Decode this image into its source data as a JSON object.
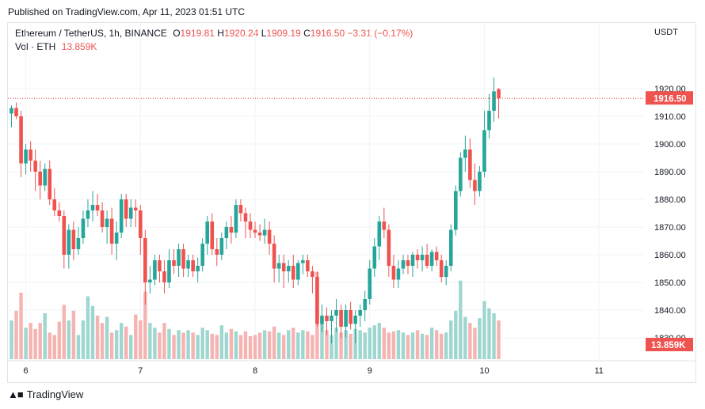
{
  "header": {
    "published": "Published on TradingView.com, Apr 11, 2023 01:51 UTC"
  },
  "legend": {
    "symbol": "Ethereum / TetherUS, 1h, BINANCE",
    "open_label": "O",
    "open": "1919.81",
    "high_label": "H",
    "high": "1920.24",
    "low_label": "L",
    "low": "1909.19",
    "close_label": "C",
    "close": "1916.50",
    "change": "−3.31 (−0.17%)",
    "vol_label": "Vol · ETH",
    "vol_value": "13.859K"
  },
  "price_axis": {
    "currency": "USDT"
  },
  "footer": {
    "brand": "TradingView",
    "logo_icon": "tradingview-logo-icon"
  },
  "colors": {
    "up": "#26a69a",
    "down": "#ef5350",
    "up_volume": "#9ed6d0",
    "down_volume": "#f5b3b1",
    "grid": "#f0f3fa",
    "axis_text": "#131722",
    "last_price_line": "#ef5350"
  },
  "chart_data": {
    "type": "candlestick",
    "instrument": "Ethereum / TetherUS",
    "interval": "1h",
    "exchange": "BINANCE",
    "ylim": [
      1822,
      1932
    ],
    "y_ticks": [
      1830,
      1840,
      1850,
      1860,
      1870,
      1880,
      1890,
      1900,
      1910,
      1920
    ],
    "y_tick_labels": [
      "1830.00",
      "1840.00",
      "1850.00",
      "1860.00",
      "1870.00",
      "1880.00",
      "1890.00",
      "1900.00",
      "1910.00",
      "1920.00"
    ],
    "x_ticks": [
      {
        "label": "6",
        "index": 3
      },
      {
        "label": "7",
        "index": 27
      },
      {
        "label": "8",
        "index": 51
      },
      {
        "label": "9",
        "index": 75
      },
      {
        "label": "10",
        "index": 99
      },
      {
        "label": "11",
        "index": 123
      }
    ],
    "last_price": "1916.50",
    "last_volume": "13.859K",
    "grid": true,
    "candles": [
      [
        1911,
        1914,
        1906,
        1913
      ],
      [
        1913,
        1915,
        1909,
        1910
      ],
      [
        1910,
        1912,
        1888,
        1893
      ],
      [
        1893,
        1900,
        1889,
        1898
      ],
      [
        1898,
        1901,
        1890,
        1894
      ],
      [
        1894,
        1898,
        1883,
        1890
      ],
      [
        1890,
        1894,
        1880,
        1885
      ],
      [
        1885,
        1893,
        1883,
        1891
      ],
      [
        1891,
        1894,
        1878,
        1880
      ],
      [
        1880,
        1884,
        1874,
        1876
      ],
      [
        1876,
        1879,
        1872,
        1874
      ],
      [
        1874,
        1876,
        1855,
        1860
      ],
      [
        1860,
        1871,
        1855,
        1869
      ],
      [
        1869,
        1872,
        1858,
        1862
      ],
      [
        1862,
        1870,
        1860,
        1866
      ],
      [
        1866,
        1876,
        1864,
        1873
      ],
      [
        1873,
        1880,
        1870,
        1876
      ],
      [
        1876,
        1883,
        1872,
        1878
      ],
      [
        1878,
        1882,
        1874,
        1876
      ],
      [
        1876,
        1879,
        1868,
        1870
      ],
      [
        1870,
        1876,
        1864,
        1873
      ],
      [
        1873,
        1877,
        1860,
        1864
      ],
      [
        1864,
        1872,
        1858,
        1868
      ],
      [
        1868,
        1882,
        1866,
        1880
      ],
      [
        1880,
        1882,
        1870,
        1873
      ],
      [
        1873,
        1880,
        1870,
        1877
      ],
      [
        1877,
        1880,
        1870,
        1876
      ],
      [
        1876,
        1878,
        1860,
        1866
      ],
      [
        1866,
        1869,
        1842,
        1850
      ],
      [
        1850,
        1856,
        1846,
        1851
      ],
      [
        1851,
        1860,
        1849,
        1858
      ],
      [
        1858,
        1860,
        1850,
        1854
      ],
      [
        1854,
        1858,
        1846,
        1850
      ],
      [
        1850,
        1862,
        1848,
        1858
      ],
      [
        1858,
        1862,
        1853,
        1856
      ],
      [
        1856,
        1864,
        1852,
        1862
      ],
      [
        1862,
        1864,
        1852,
        1855
      ],
      [
        1855,
        1860,
        1852,
        1858
      ],
      [
        1858,
        1860,
        1852,
        1854
      ],
      [
        1854,
        1859,
        1850,
        1856
      ],
      [
        1856,
        1866,
        1854,
        1864
      ],
      [
        1864,
        1874,
        1860,
        1872
      ],
      [
        1872,
        1875,
        1860,
        1862
      ],
      [
        1862,
        1866,
        1856,
        1860
      ],
      [
        1860,
        1868,
        1858,
        1866
      ],
      [
        1866,
        1872,
        1862,
        1870
      ],
      [
        1870,
        1874,
        1864,
        1868
      ],
      [
        1868,
        1880,
        1866,
        1878
      ],
      [
        1878,
        1880,
        1872,
        1875
      ],
      [
        1875,
        1877,
        1866,
        1872
      ],
      [
        1872,
        1875,
        1866,
        1869
      ],
      [
        1869,
        1872,
        1866,
        1868
      ],
      [
        1868,
        1871,
        1865,
        1867
      ],
      [
        1867,
        1873,
        1864,
        1869
      ],
      [
        1869,
        1872,
        1860,
        1864
      ],
      [
        1864,
        1867,
        1850,
        1855
      ],
      [
        1855,
        1860,
        1850,
        1857
      ],
      [
        1857,
        1860,
        1848,
        1854
      ],
      [
        1854,
        1858,
        1850,
        1856
      ],
      [
        1856,
        1860,
        1848,
        1851
      ],
      [
        1851,
        1858,
        1849,
        1857
      ],
      [
        1857,
        1860,
        1853,
        1858
      ],
      [
        1858,
        1860,
        1852,
        1854
      ],
      [
        1854,
        1856,
        1846,
        1852
      ],
      [
        1852,
        1854,
        1834,
        1835
      ],
      [
        1835,
        1842,
        1832,
        1838
      ],
      [
        1838,
        1841,
        1831,
        1836
      ],
      [
        1836,
        1840,
        1828,
        1838
      ],
      [
        1838,
        1844,
        1832,
        1840
      ],
      [
        1840,
        1842,
        1830,
        1834
      ],
      [
        1834,
        1842,
        1830,
        1840
      ],
      [
        1840,
        1843,
        1833,
        1835
      ],
      [
        1835,
        1840,
        1828,
        1838
      ],
      [
        1838,
        1842,
        1834,
        1840
      ],
      [
        1840,
        1847,
        1836,
        1844
      ],
      [
        1844,
        1858,
        1842,
        1855
      ],
      [
        1855,
        1866,
        1852,
        1863
      ],
      [
        1863,
        1874,
        1858,
        1872
      ],
      [
        1872,
        1877,
        1866,
        1869
      ],
      [
        1869,
        1871,
        1852,
        1856
      ],
      [
        1856,
        1860,
        1848,
        1851
      ],
      [
        1851,
        1858,
        1848,
        1855
      ],
      [
        1855,
        1860,
        1853,
        1858
      ],
      [
        1858,
        1860,
        1853,
        1856
      ],
      [
        1856,
        1861,
        1852,
        1860
      ],
      [
        1860,
        1862,
        1855,
        1858
      ],
      [
        1858,
        1863,
        1854,
        1860
      ],
      [
        1860,
        1864,
        1855,
        1856
      ],
      [
        1856,
        1862,
        1854,
        1861
      ],
      [
        1861,
        1863,
        1856,
        1858
      ],
      [
        1858,
        1860,
        1850,
        1852
      ],
      [
        1852,
        1858,
        1849,
        1856
      ],
      [
        1856,
        1871,
        1854,
        1869
      ],
      [
        1869,
        1885,
        1867,
        1883
      ],
      [
        1883,
        1897,
        1881,
        1895
      ],
      [
        1895,
        1903,
        1890,
        1898
      ],
      [
        1898,
        1902,
        1884,
        1887
      ],
      [
        1887,
        1893,
        1878,
        1883
      ],
      [
        1883,
        1892,
        1881,
        1890
      ],
      [
        1890,
        1912,
        1888,
        1905
      ],
      [
        1905,
        1918,
        1902,
        1912
      ],
      [
        1912,
        1924,
        1908,
        1919
      ],
      [
        1919.81,
        1920.24,
        1909.19,
        1916.5
      ]
    ],
    "volumes": [
      3.2,
      4.0,
      5.5,
      2.6,
      3.0,
      2.5,
      3.0,
      3.8,
      2.2,
      2.0,
      3.1,
      4.5,
      3.2,
      4.0,
      2.0,
      3.2,
      5.2,
      4.4,
      3.6,
      3.0,
      3.5,
      2.2,
      2.4,
      3.0,
      2.7,
      2.0,
      3.7,
      3.2,
      5.6,
      3.0,
      2.6,
      2.2,
      3.0,
      2.5,
      2.0,
      2.4,
      2.2,
      2.4,
      2.2,
      2.0,
      2.6,
      2.4,
      2.1,
      2.0,
      2.8,
      2.2,
      2.5,
      2.3,
      2.0,
      2.3,
      1.9,
      2.0,
      2.2,
      2.4,
      2.3,
      2.7,
      2.2,
      2.0,
      2.4,
      2.6,
      2.2,
      2.4,
      2.3,
      2.0,
      7.2,
      3.0,
      2.4,
      2.0,
      2.6,
      2.2,
      2.4,
      2.1,
      2.5,
      2.4,
      2.2,
      2.6,
      2.8,
      3.0,
      2.6,
      2.2,
      2.3,
      2.4,
      2.2,
      2.0,
      2.2,
      2.4,
      2.1,
      2.0,
      2.6,
      2.4,
      2.1,
      2.2,
      3.2,
      4.0,
      6.5,
      3.5,
      3.0,
      2.6,
      3.4,
      4.8,
      4.2,
      3.8,
      3.2
    ]
  }
}
